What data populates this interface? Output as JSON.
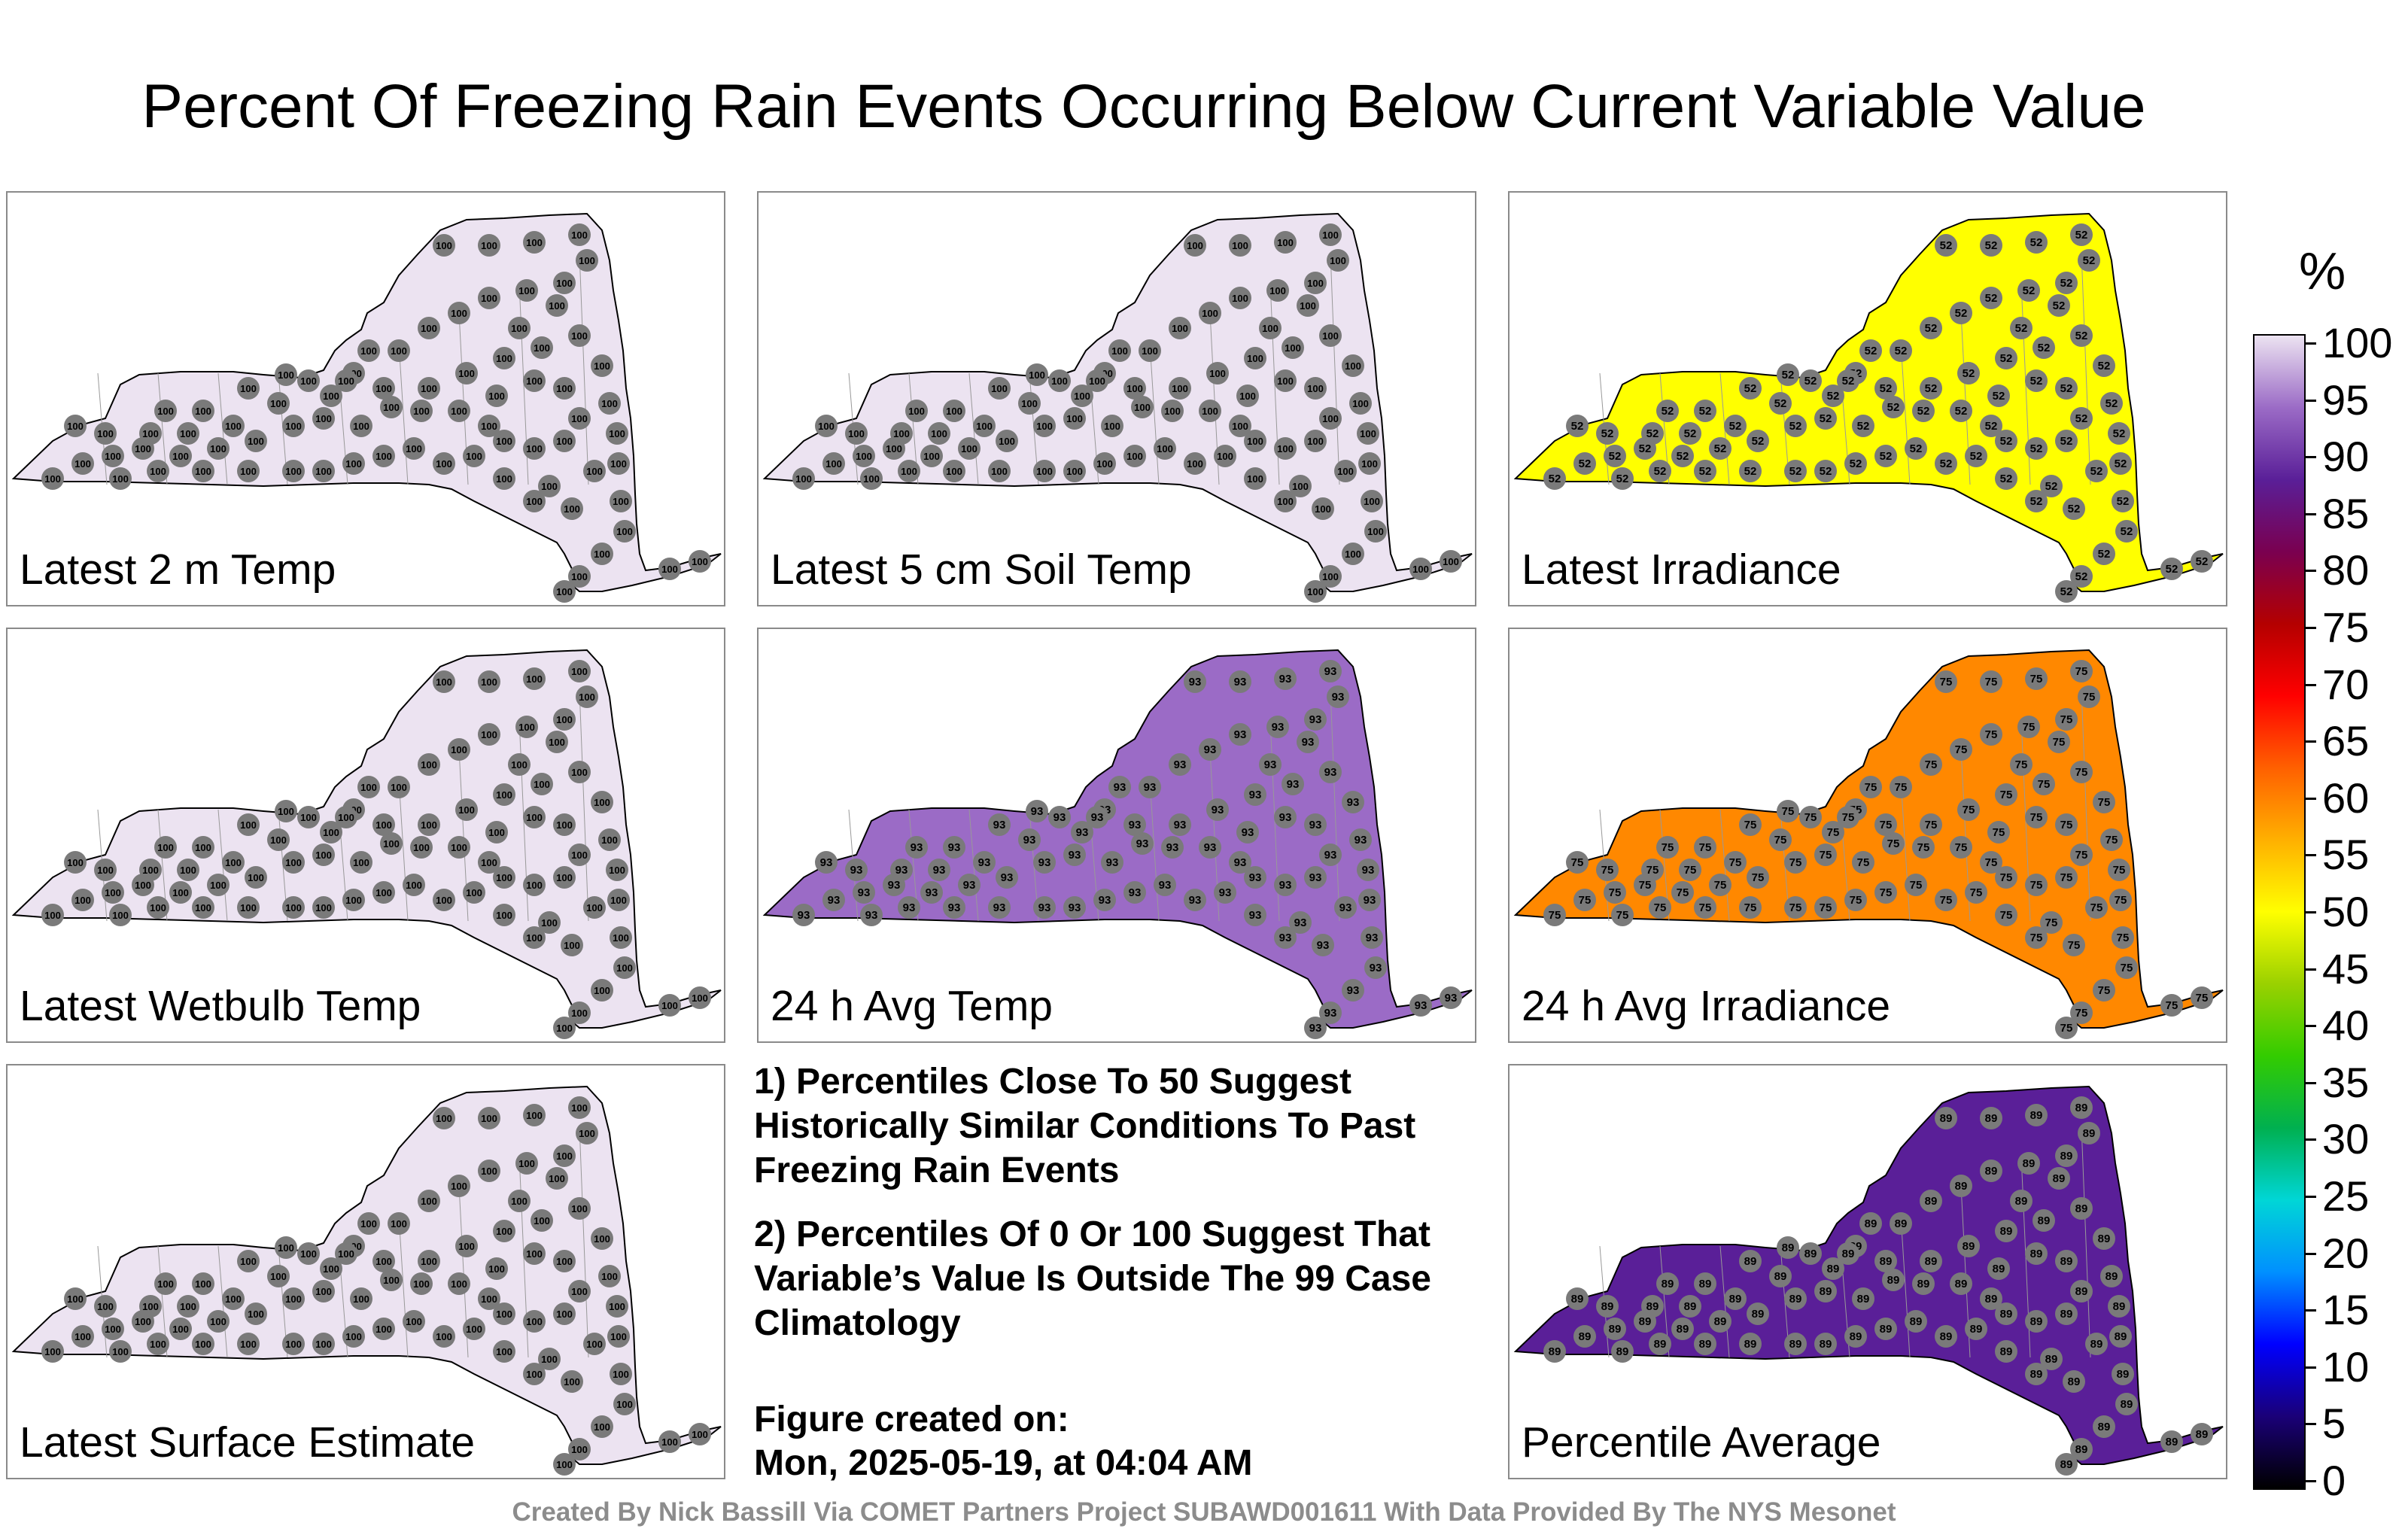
{
  "title": "Percent Of Freezing Rain Events Occurring Below Current Variable Value",
  "colors": {
    "state_fill_100": "#ece3f1",
    "state_fill_52": "#ffff00",
    "state_fill_93": "#9b6bc6",
    "station_marker": "#7a7a7a",
    "state_outline": "#000000"
  },
  "panels": [
    {
      "label": "Latest 2 m Temp",
      "value_text": "100",
      "fill": "#ece3f1"
    },
    {
      "label": "Latest 5 cm Soil Temp",
      "value_text": "100",
      "fill": "#ece3f1"
    },
    {
      "label": "Latest Irradiance",
      "value_text": "52",
      "fill": "#ffff00"
    },
    {
      "label": "Latest Wetbulb Temp",
      "value_text": "100",
      "fill": "#ece3f1"
    },
    {
      "label": "24 h Avg Temp",
      "value_text": "93",
      "fill": "#9b6bc6"
    },
    {
      "label": "24 h Avg Irradiance",
      "value_text": "75",
      "fill": "#ff8800"
    },
    {
      "label": "Latest Surface Estimate",
      "value_text": "100",
      "fill": "#ece3f1"
    },
    {
      "label": "Percentile Average",
      "value_text": "89",
      "fill": "#5a1f98"
    }
  ],
  "notes": {
    "note1": "1) Percentiles Close To 50 Suggest Historically Similar Conditions To Past Freezing Rain Events",
    "note2": "2) Percentiles Of 0 Or 100 Suggest That Variable’s Value Is Outside The 99 Case Climatology"
  },
  "figure_created": {
    "label": "Figure created on:",
    "timestamp": "Mon, 2025-05-19, at 04:04 AM"
  },
  "credit": "Created By Nick Bassill Via COMET Partners Project SUBAWD001611 With Data Provided By The NYS Mesonet",
  "colorbar": {
    "unit": "%",
    "labels": [
      "100",
      "95",
      "90",
      "85",
      "80",
      "75",
      "70",
      "65",
      "60",
      "55",
      "50",
      "45",
      "40",
      "35",
      "30",
      "25",
      "20",
      "15",
      "10",
      "5",
      "0"
    ],
    "stops": [
      "#000000",
      "#1a0078",
      "#0000ff",
      "#0090ff",
      "#00d6d6",
      "#00b050",
      "#33cc00",
      "#9ad100",
      "#ffff00",
      "#ffb000",
      "#ff6000",
      "#ff0000",
      "#b40000",
      "#7a0050",
      "#5a1f98",
      "#9b6bc6",
      "#ece3f1"
    ]
  }
}
